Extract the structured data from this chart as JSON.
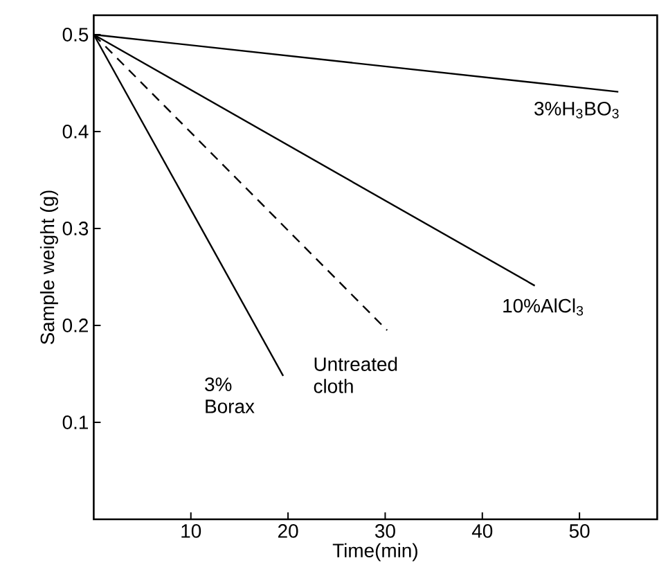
{
  "chart_data": {
    "type": "line",
    "xlabel": "Time(min)",
    "ylabel": "Sample weight  (g)",
    "xlim": [
      0,
      58
    ],
    "ylim": [
      0,
      0.52
    ],
    "xticks": [
      10,
      20,
      30,
      40,
      50
    ],
    "yticks": [
      0.1,
      0.2,
      0.3,
      0.4,
      0.5
    ],
    "grid": false,
    "legend": false,
    "marker": "none",
    "series": [
      {
        "name": "3%H$_{3}$BO$_{3}$",
        "color": "#000000",
        "line_style": "solid",
        "x": [
          0,
          54
        ],
        "values": [
          0.5,
          0.441
        ]
      },
      {
        "name": "10%AlCl$_{3}$",
        "color": "#000000",
        "line_style": "solid",
        "x": [
          0,
          45.4
        ],
        "values": [
          0.5,
          0.241
        ]
      },
      {
        "name": "Untreated cloth",
        "color": "#000000",
        "line_style": "dashed",
        "x": [
          0,
          30.2
        ],
        "values": [
          0.5,
          0.195
        ]
      },
      {
        "name": "3% Borax",
        "color": "#000000",
        "line_style": "solid",
        "x": [
          0,
          19.5
        ],
        "values": [
          0.5,
          0.148
        ]
      }
    ]
  }
}
